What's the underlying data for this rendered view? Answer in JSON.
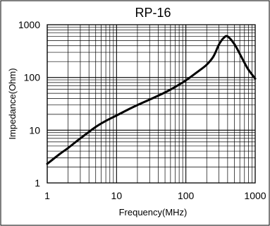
{
  "chart_data": {
    "type": "line",
    "title": "RP-16",
    "xlabel": "Frequency(MHz)",
    "ylabel": "Impedance(Ohm)",
    "x_scale": "log",
    "y_scale": "log",
    "xlim": [
      1,
      1000
    ],
    "ylim": [
      1,
      1000
    ],
    "grid": true,
    "x_ticks": [
      1,
      10,
      100,
      1000
    ],
    "x_tick_labels": [
      "1",
      "10",
      "100",
      "1000"
    ],
    "y_ticks": [
      1,
      10,
      100,
      1000
    ],
    "y_tick_labels": [
      "1",
      "10",
      "100",
      "1000"
    ],
    "series": [
      {
        "x": [
          1,
          1.5,
          2,
          3,
          5,
          7,
          10,
          15,
          20,
          30,
          50,
          70,
          100,
          150,
          200,
          250,
          300,
          350,
          400,
          500,
          600,
          700,
          800,
          1000
        ],
        "y": [
          2.3,
          3.5,
          4.6,
          7,
          11.5,
          15,
          19,
          25,
          30,
          38,
          52,
          66,
          88,
          130,
          175,
          250,
          420,
          560,
          600,
          430,
          280,
          190,
          140,
          95
        ]
      }
    ],
    "line_color": "#000000"
  }
}
